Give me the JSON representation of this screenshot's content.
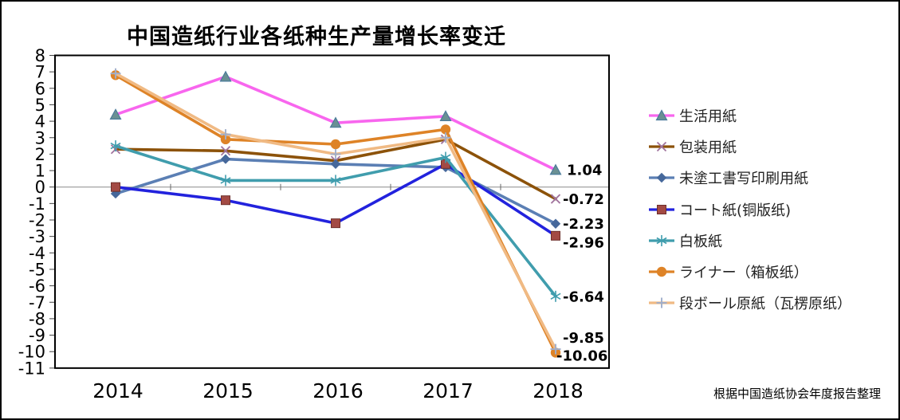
{
  "title": "中国造纸行业各纸种生产量增长率变迁",
  "source_note": "根据中国造纸协会年度报告整理",
  "chart_data": {
    "type": "line",
    "categories": [
      "2014",
      "2015",
      "2016",
      "2017",
      "2018"
    ],
    "ylim": [
      -11,
      8
    ],
    "y_ticks": [
      8,
      7,
      6,
      5,
      4,
      3,
      2,
      1,
      0,
      -1,
      -2,
      -3,
      -4,
      -5,
      -6,
      -7,
      -8,
      -9,
      -10,
      -11
    ],
    "grid": "zero-line-only",
    "legend_position": "right",
    "xlabel": "",
    "ylabel": "",
    "series": [
      {
        "name": "生活用紙",
        "values": [
          4.4,
          6.7,
          3.9,
          4.3,
          1.04
        ],
        "end_label": "1.04",
        "line_color": "#f866ee",
        "marker": "triangle",
        "marker_color": "#6a9093",
        "marker_edge": "#4b7b9b"
      },
      {
        "name": "包装用紙",
        "values": [
          2.3,
          2.2,
          1.6,
          2.9,
          -0.72
        ],
        "end_label": "-0.72",
        "line_color": "#8c5209",
        "marker": "x",
        "marker_color": "#a0739d"
      },
      {
        "name": "未塗工書写印刷用紙",
        "values": [
          -0.4,
          1.7,
          1.4,
          1.2,
          -2.23
        ],
        "end_label": "-2.23",
        "line_color": "#5b7fb4",
        "marker": "diamond",
        "marker_color": "#46689b"
      },
      {
        "name": "コート紙(铜版纸)",
        "values": [
          0.0,
          -0.8,
          -2.2,
          1.4,
          -2.96
        ],
        "end_label": "-2.96",
        "line_color": "#2222dd",
        "marker": "square",
        "marker_color": "#a34a44",
        "marker_edge": "#6e2f2a"
      },
      {
        "name": "白板紙",
        "values": [
          2.5,
          0.4,
          0.4,
          1.8,
          -6.64
        ],
        "end_label": "-6.64",
        "line_color": "#409dad",
        "marker": "asterisk",
        "marker_color": "#3f9dad"
      },
      {
        "name": "ライナー（箱板纸）",
        "values": [
          6.8,
          2.9,
          2.6,
          3.5,
          -10.06
        ],
        "end_label": "-10.06",
        "line_color": "#de8327",
        "marker": "circle",
        "marker_color": "#de8327"
      },
      {
        "name": "段ボール原紙（瓦楞原纸）",
        "values": [
          6.9,
          3.2,
          2.0,
          3.0,
          -9.85
        ],
        "end_label": "-9.85",
        "line_color": "#f0ba84",
        "marker": "plus",
        "marker_color": "#9faecb"
      }
    ]
  }
}
